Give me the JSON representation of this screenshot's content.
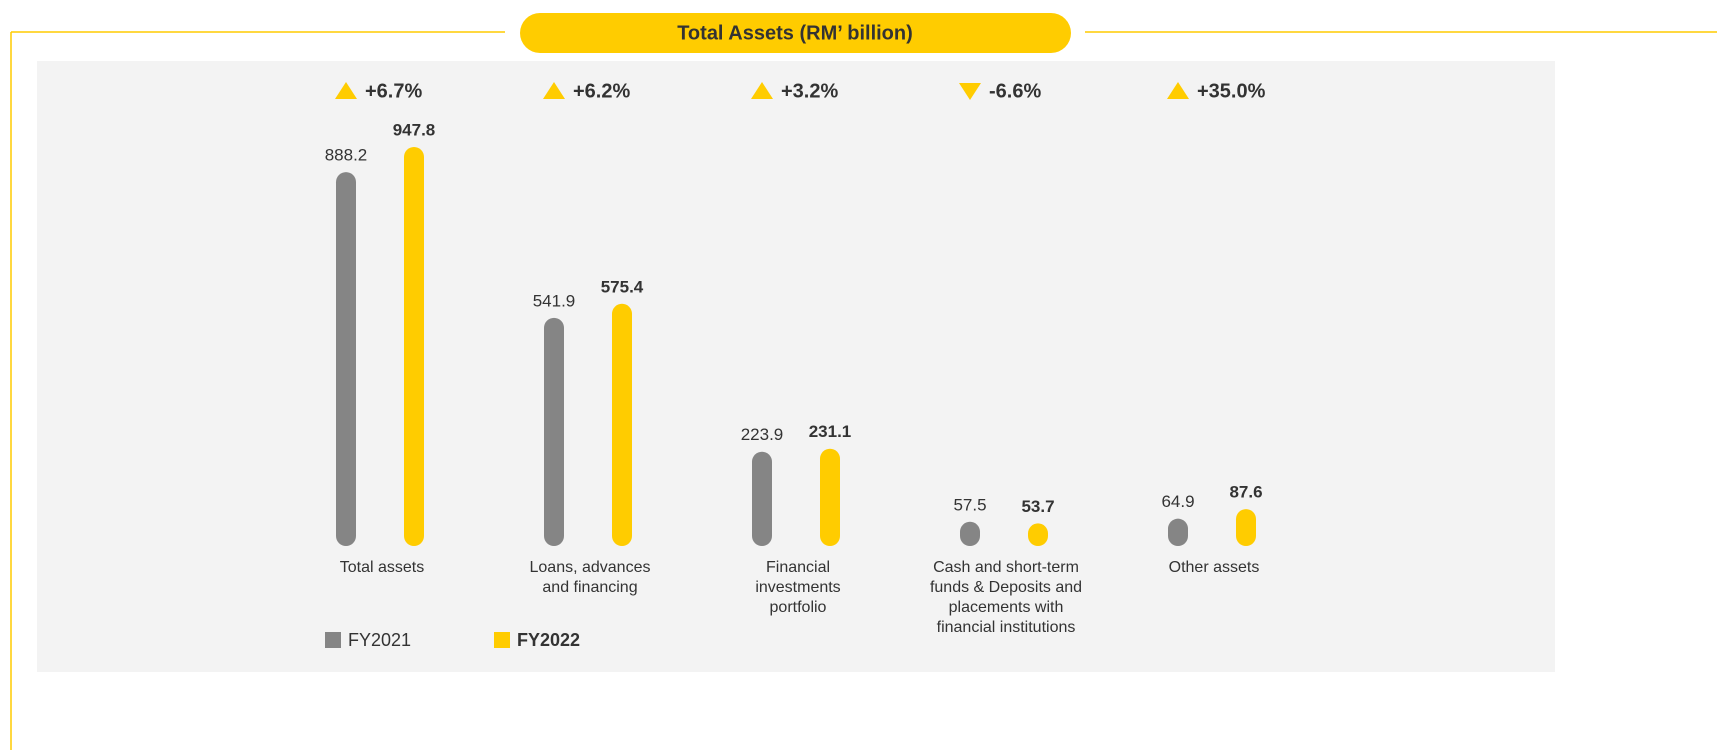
{
  "chart_data": {
    "type": "bar",
    "title": "Total Assets (RM’ billion)",
    "categories": [
      "Total assets",
      "Loans, advances and financing",
      "Financial investments portfolio",
      "Cash and short-term funds & Deposits and placements with financial institutions",
      "Other assets"
    ],
    "series": [
      {
        "name": "FY2021",
        "color": "#858585",
        "values": [
          888.2,
          541.9,
          223.9,
          57.5,
          64.9
        ]
      },
      {
        "name": "FY2022",
        "color": "#ffcc00",
        "values": [
          947.8,
          575.4,
          231.1,
          53.7,
          87.6
        ]
      }
    ],
    "changes": {
      "values": [
        6.7,
        6.2,
        3.2,
        -6.6,
        35.0
      ],
      "value_labels": [
        "+6.7%",
        "+6.2%",
        "+3.2%",
        "-6.6%",
        "+35.0%"
      ]
    }
  }
}
